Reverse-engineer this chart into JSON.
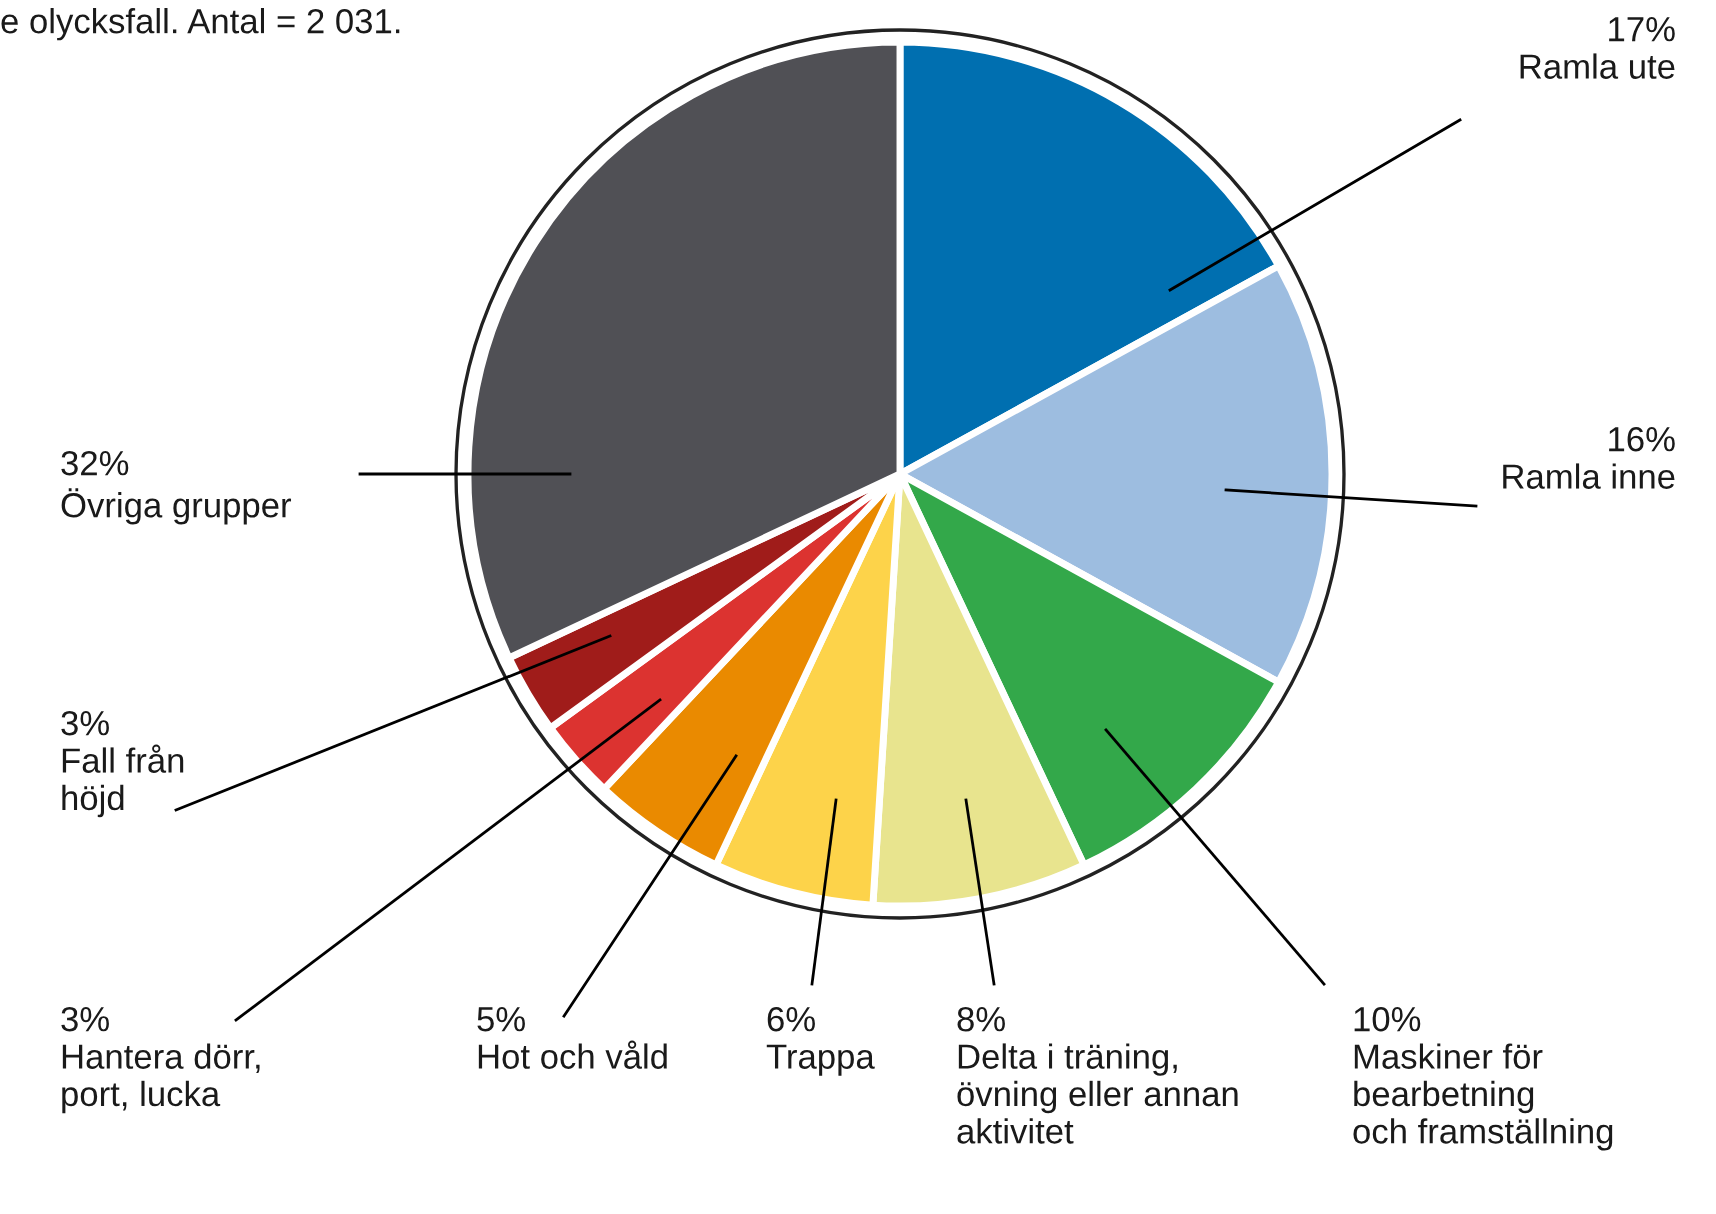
{
  "chart_data": {
    "type": "pie",
    "title": "e olycksfall. Antal = 2 031.",
    "categories": [
      "Ramla ute",
      "Ramla inne",
      "Maskiner för\nbearbetning\noch framställning",
      "Delta i träning,\növning eller annan\naktivitet",
      "Trappa",
      "Hot och våld",
      "Hantera dörr,\nport, lucka",
      "Fall från\nhöjd",
      "Övriga grupper"
    ],
    "values": [
      17,
      16,
      10,
      8,
      6,
      5,
      3,
      3,
      32
    ],
    "value_labels": [
      "17%",
      "16%",
      "10%",
      "8%",
      "6%",
      "5%",
      "3%",
      "3%",
      "32%"
    ],
    "colors": [
      "#006fb0",
      "#9dbde0",
      "#33a84a",
      "#e8e48e",
      "#fdd34a",
      "#ea8a00",
      "#dc3330",
      "#a01c1a",
      "#505055"
    ]
  }
}
